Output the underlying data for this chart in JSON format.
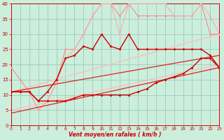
{
  "xlabel": "Vent moyen/en rafales ( km/h )",
  "xlim": [
    0,
    23
  ],
  "ylim": [
    0,
    40
  ],
  "xticks": [
    0,
    1,
    2,
    3,
    4,
    5,
    6,
    7,
    8,
    9,
    10,
    11,
    12,
    13,
    14,
    15,
    16,
    17,
    18,
    19,
    20,
    21,
    22,
    23
  ],
  "yticks": [
    0,
    5,
    10,
    15,
    20,
    25,
    30,
    35,
    40
  ],
  "bg_color": "#cceedd",
  "grid_color": "#99ccbb",
  "series": [
    {
      "x": [
        0,
        1,
        2,
        3,
        4,
        5,
        6,
        7,
        8,
        9,
        10,
        11,
        12,
        13,
        14,
        15,
        16,
        17,
        18,
        19,
        20,
        21,
        22,
        23
      ],
      "y": [
        19,
        15,
        11,
        5,
        8,
        14,
        25,
        25,
        30,
        36,
        40,
        40,
        36,
        40,
        36,
        36,
        36,
        36,
        36,
        36,
        36,
        40,
        30,
        30
      ],
      "color": "#ff8888",
      "lw": 0.8,
      "marker": "o",
      "ms": 1.8,
      "zorder": 3
    },
    {
      "x": [
        0,
        1,
        2,
        3,
        4,
        5,
        6,
        7,
        8,
        9,
        10,
        11,
        12,
        13,
        14,
        15,
        16,
        17,
        18,
        19,
        20,
        21,
        22,
        23
      ],
      "y": [
        11,
        11,
        11,
        5,
        8,
        14,
        22,
        25,
        30,
        36,
        40,
        40,
        30,
        40,
        40,
        40,
        40,
        40,
        36,
        36,
        36,
        40,
        36,
        30
      ],
      "color": "#ffaaaa",
      "lw": 0.8,
      "marker": "o",
      "ms": 1.8,
      "zorder": 3
    },
    {
      "x": [
        0,
        23
      ],
      "y": [
        11,
        30
      ],
      "color": "#ffbbbb",
      "lw": 0.9,
      "marker": null,
      "ms": 0,
      "zorder": 2
    },
    {
      "x": [
        0,
        23
      ],
      "y": [
        5,
        20
      ],
      "color": "#ffbbbb",
      "lw": 0.9,
      "marker": null,
      "ms": 0,
      "zorder": 2
    },
    {
      "x": [
        0,
        1,
        2,
        3,
        4,
        5,
        6,
        7,
        8,
        9,
        10,
        11,
        12,
        13,
        14,
        15,
        16,
        17,
        18,
        19,
        20,
        21,
        22,
        23
      ],
      "y": [
        11,
        11,
        11,
        8,
        11,
        15,
        22,
        23,
        26,
        25,
        30,
        26,
        25,
        30,
        25,
        25,
        25,
        25,
        25,
        25,
        25,
        25,
        23,
        19
      ],
      "color": "#cc0000",
      "lw": 1.0,
      "marker": "D",
      "ms": 2.0,
      "zorder": 5
    },
    {
      "x": [
        0,
        1,
        2,
        3,
        4,
        5,
        6,
        7,
        8,
        9,
        10,
        11,
        12,
        13,
        14,
        15,
        16,
        17,
        18,
        19,
        20,
        21,
        22,
        23
      ],
      "y": [
        11,
        11,
        11,
        8,
        8,
        8,
        8,
        9,
        10,
        10,
        10,
        10,
        10,
        10,
        11,
        12,
        14,
        15,
        16,
        17,
        19,
        22,
        22,
        19
      ],
      "color": "#cc0000",
      "lw": 1.0,
      "marker": "D",
      "ms": 2.0,
      "zorder": 5
    },
    {
      "x": [
        0,
        23
      ],
      "y": [
        11,
        23
      ],
      "color": "#dd2222",
      "lw": 0.9,
      "marker": null,
      "ms": 0,
      "zorder": 4
    },
    {
      "x": [
        0,
        23
      ],
      "y": [
        4,
        19
      ],
      "color": "#dd2222",
      "lw": 0.9,
      "marker": null,
      "ms": 0,
      "zorder": 4
    }
  ]
}
